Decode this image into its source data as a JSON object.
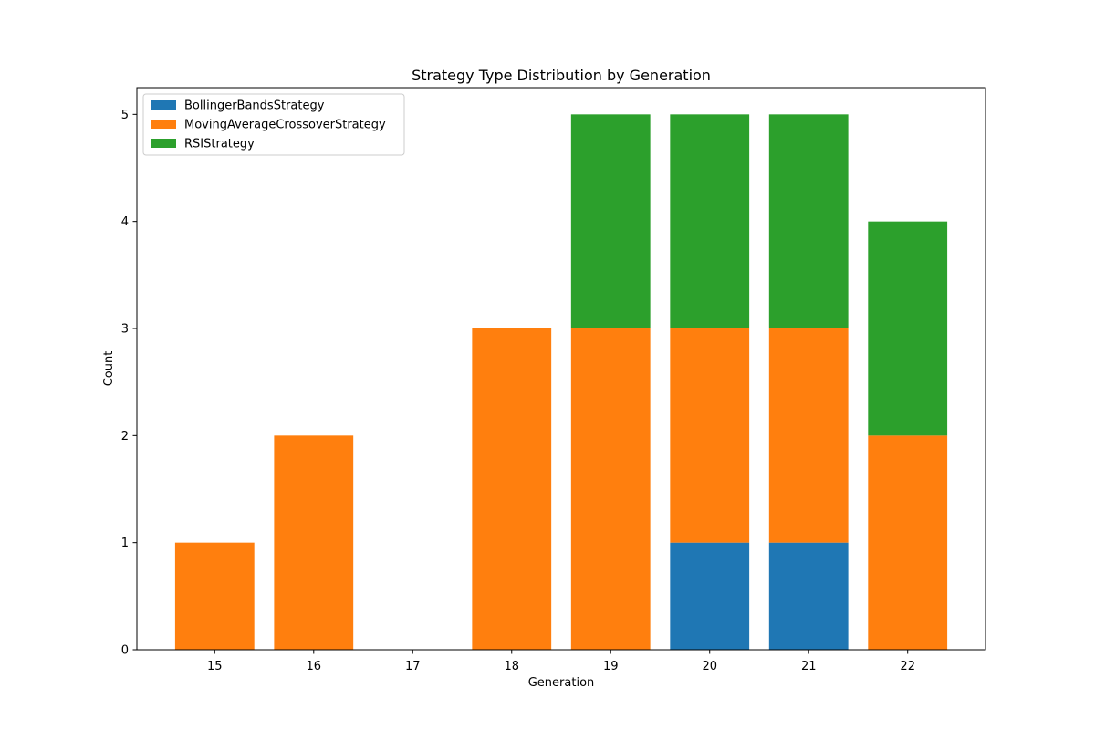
{
  "chart_data": {
    "type": "bar",
    "stacked": true,
    "title": "Strategy Type Distribution by Generation",
    "xlabel": "Generation",
    "ylabel": "Count",
    "categories": [
      "15",
      "16",
      "17",
      "18",
      "19",
      "20",
      "21",
      "22"
    ],
    "yticks": [
      "0",
      "1",
      "2",
      "3",
      "4",
      "5"
    ],
    "ylim": [
      0,
      5.25
    ],
    "grid": false,
    "legend_position": "top-left",
    "series": [
      {
        "name": "BollingerBandsStrategy",
        "color": "#1f77b4",
        "values": [
          0,
          0,
          0,
          0,
          0,
          1,
          1,
          0
        ]
      },
      {
        "name": "MovingAverageCrossoverStrategy",
        "color": "#ff7f0e",
        "values": [
          1,
          2,
          0,
          3,
          3,
          2,
          2,
          2
        ]
      },
      {
        "name": "RSIStrategy",
        "color": "#2ca02c",
        "values": [
          0,
          0,
          0,
          0,
          2,
          2,
          2,
          2
        ]
      }
    ]
  }
}
